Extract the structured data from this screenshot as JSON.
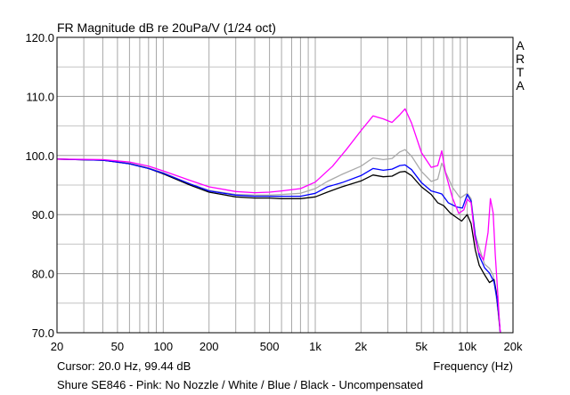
{
  "chart_data": {
    "type": "line",
    "title": "FR Magnitude dB re 20uPa/V (1/24 oct)",
    "xlabel": "Frequency (Hz)",
    "ylabel": "",
    "x_scale": "log",
    "xlim": [
      20,
      20000
    ],
    "ylim": [
      70,
      120
    ],
    "grid": true,
    "y_ticks": [
      "70.0",
      "80.0",
      "90.0",
      "100.0",
      "110.0",
      "120.0"
    ],
    "x_tick_values": [
      20,
      50,
      100,
      200,
      500,
      1000,
      2000,
      5000,
      10000,
      20000
    ],
    "x_tick_labels": [
      "20",
      "50",
      "100",
      "200",
      "500",
      "1k",
      "2k",
      "5k",
      "10k",
      "20k"
    ],
    "watermark": "ARTA",
    "cursor_text": "Cursor: 20.0 Hz, 99.44 dB",
    "footer": "Shure SE846 - Pink: No Nozzle / White / Blue / Black - Uncompensated",
    "series": [
      {
        "name": "Pink: No Nozzle",
        "color": "#ff00ff",
        "points": [
          [
            20,
            99.4
          ],
          [
            40,
            99.3
          ],
          [
            60,
            98.9
          ],
          [
            80,
            98.2
          ],
          [
            100,
            97.4
          ],
          [
            150,
            95.8
          ],
          [
            200,
            94.7
          ],
          [
            300,
            93.9
          ],
          [
            400,
            93.7
          ],
          [
            500,
            93.8
          ],
          [
            600,
            94.0
          ],
          [
            800,
            94.4
          ],
          [
            1000,
            95.5
          ],
          [
            1300,
            98.2
          ],
          [
            1600,
            101.0
          ],
          [
            2000,
            104.2
          ],
          [
            2400,
            106.7
          ],
          [
            2800,
            106.2
          ],
          [
            3200,
            105.6
          ],
          [
            3600,
            106.9
          ],
          [
            3900,
            107.9
          ],
          [
            4300,
            105.5
          ],
          [
            5000,
            100.5
          ],
          [
            5800,
            98.0
          ],
          [
            6400,
            98.3
          ],
          [
            6800,
            100.8
          ],
          [
            7200,
            97.0
          ],
          [
            8000,
            92.8
          ],
          [
            8800,
            90.2
          ],
          [
            9500,
            90.8
          ],
          [
            10000,
            92.6
          ],
          [
            10600,
            92.0
          ],
          [
            11200,
            86.3
          ],
          [
            11800,
            83.8
          ],
          [
            12800,
            82.3
          ],
          [
            13700,
            87.0
          ],
          [
            14200,
            92.7
          ],
          [
            14800,
            90.3
          ],
          [
            15300,
            83.2
          ],
          [
            15800,
            77.6
          ],
          [
            16200,
            72.8
          ],
          [
            16500,
            70.0
          ]
        ]
      },
      {
        "name": "White",
        "color": "#aaaaaa",
        "points": [
          [
            20,
            99.4
          ],
          [
            40,
            99.2
          ],
          [
            60,
            98.7
          ],
          [
            80,
            97.9
          ],
          [
            100,
            97.1
          ],
          [
            150,
            95.2
          ],
          [
            200,
            94.1
          ],
          [
            300,
            93.4
          ],
          [
            400,
            93.3
          ],
          [
            500,
            93.3
          ],
          [
            600,
            93.4
          ],
          [
            800,
            93.6
          ],
          [
            1000,
            94.4
          ],
          [
            1200,
            95.6
          ],
          [
            1500,
            96.8
          ],
          [
            2000,
            98.2
          ],
          [
            2400,
            99.6
          ],
          [
            2800,
            99.3
          ],
          [
            3200,
            99.5
          ],
          [
            3600,
            100.6
          ],
          [
            3900,
            101.0
          ],
          [
            4300,
            99.9
          ],
          [
            5000,
            97.3
          ],
          [
            5800,
            95.6
          ],
          [
            6400,
            96.0
          ],
          [
            6800,
            98.7
          ],
          [
            7200,
            97.2
          ],
          [
            8000,
            94.6
          ],
          [
            9000,
            92.8
          ],
          [
            10000,
            93.6
          ],
          [
            10600,
            92.7
          ],
          [
            11300,
            86.6
          ],
          [
            12000,
            84.4
          ],
          [
            13000,
            81.6
          ],
          [
            14000,
            80.9
          ],
          [
            14800,
            79.7
          ],
          [
            15500,
            76.2
          ],
          [
            16000,
            73.0
          ],
          [
            16500,
            70.0
          ]
        ]
      },
      {
        "name": "Blue",
        "color": "#0000ff",
        "points": [
          [
            20,
            99.4
          ],
          [
            40,
            99.2
          ],
          [
            60,
            98.6
          ],
          [
            80,
            97.8
          ],
          [
            100,
            97.0
          ],
          [
            150,
            95.2
          ],
          [
            200,
            94.0
          ],
          [
            300,
            93.3
          ],
          [
            400,
            93.1
          ],
          [
            500,
            93.1
          ],
          [
            600,
            93.1
          ],
          [
            800,
            93.1
          ],
          [
            1000,
            93.6
          ],
          [
            1200,
            94.7
          ],
          [
            1500,
            95.4
          ],
          [
            2000,
            96.6
          ],
          [
            2400,
            97.8
          ],
          [
            2800,
            97.5
          ],
          [
            3200,
            97.7
          ],
          [
            3600,
            98.3
          ],
          [
            3900,
            98.4
          ],
          [
            4300,
            97.6
          ],
          [
            5000,
            95.4
          ],
          [
            5800,
            94.0
          ],
          [
            6400,
            93.7
          ],
          [
            6800,
            93.5
          ],
          [
            7500,
            92.0
          ],
          [
            8500,
            91.3
          ],
          [
            9300,
            91.1
          ],
          [
            10000,
            93.4
          ],
          [
            10600,
            92.3
          ],
          [
            11300,
            86.3
          ],
          [
            12000,
            83.0
          ],
          [
            13000,
            81.0
          ],
          [
            14000,
            80.1
          ],
          [
            15000,
            78.6
          ],
          [
            15700,
            75.7
          ],
          [
            16200,
            72.5
          ],
          [
            16500,
            70.0
          ]
        ]
      },
      {
        "name": "Black",
        "color": "#000000",
        "points": [
          [
            20,
            99.4
          ],
          [
            40,
            99.2
          ],
          [
            60,
            98.6
          ],
          [
            80,
            97.8
          ],
          [
            100,
            96.9
          ],
          [
            150,
            95.0
          ],
          [
            200,
            93.8
          ],
          [
            300,
            93.0
          ],
          [
            400,
            92.8
          ],
          [
            500,
            92.8
          ],
          [
            600,
            92.7
          ],
          [
            800,
            92.7
          ],
          [
            1000,
            93.0
          ],
          [
            1200,
            93.8
          ],
          [
            1500,
            94.7
          ],
          [
            2000,
            95.7
          ],
          [
            2400,
            96.7
          ],
          [
            2800,
            96.4
          ],
          [
            3200,
            96.5
          ],
          [
            3600,
            97.2
          ],
          [
            3900,
            97.3
          ],
          [
            4300,
            96.6
          ],
          [
            5000,
            94.7
          ],
          [
            5800,
            93.4
          ],
          [
            6400,
            92.0
          ],
          [
            7000,
            91.5
          ],
          [
            7700,
            90.3
          ],
          [
            8500,
            89.5
          ],
          [
            9200,
            88.9
          ],
          [
            10000,
            90.0
          ],
          [
            10600,
            88.5
          ],
          [
            11300,
            84.0
          ],
          [
            12000,
            81.4
          ],
          [
            13000,
            79.8
          ],
          [
            14000,
            78.5
          ],
          [
            15000,
            79.0
          ],
          [
            15500,
            77.0
          ],
          [
            16000,
            73.8
          ],
          [
            16500,
            70.0
          ]
        ]
      }
    ]
  }
}
